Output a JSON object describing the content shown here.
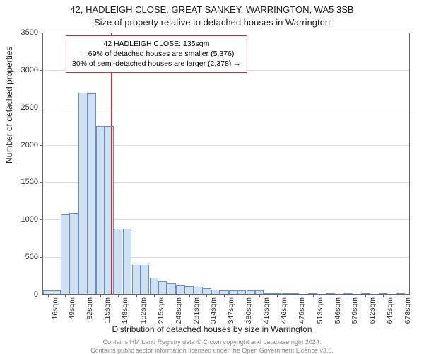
{
  "title_line1": "42, HADLEIGH CLOSE, GREAT SANKEY, WARRINGTON, WA5 3SB",
  "title_line2": "Size of property relative to detached houses in Warrington",
  "ylabel": "Number of detached properties",
  "xlabel": "Distribution of detached houses by size in Warrington",
  "footer_line1": "Contains HM Land Registry data © Crown copyright and database right 2024.",
  "footer_line2": "Contains public sector information licensed under the Open Government Licence v3.0.",
  "chart": {
    "type": "histogram",
    "ylim": [
      0,
      3500
    ],
    "ytick_step": 500,
    "background_color": "#ffffff",
    "grid_color": "#dddddd",
    "axis_color": "#666666",
    "bar_fill": "#cfe0f3",
    "bar_stroke": "#6a8fc7",
    "marker_color": "#c23333",
    "callout_border": "#c23333",
    "title_fontsize": 13,
    "label_fontsize": 12,
    "tick_fontsize": 11,
    "xtick_labels": [
      "16sqm",
      "49sqm",
      "82sqm",
      "115sqm",
      "148sqm",
      "182sqm",
      "215sqm",
      "248sqm",
      "281sqm",
      "314sqm",
      "347sqm",
      "380sqm",
      "413sqm",
      "446sqm",
      "479sqm",
      "513sqm",
      "546sqm",
      "579sqm",
      "612sqm",
      "645sqm",
      "678sqm"
    ],
    "xtick_values": [
      16,
      49,
      82,
      115,
      148,
      182,
      215,
      248,
      281,
      314,
      347,
      380,
      413,
      446,
      479,
      513,
      546,
      579,
      612,
      645,
      678
    ],
    "x_range": [
      6,
      695
    ],
    "bars": [
      {
        "x": 16,
        "count": 60
      },
      {
        "x": 32,
        "count": 60
      },
      {
        "x": 49,
        "count": 1080
      },
      {
        "x": 65,
        "count": 1090
      },
      {
        "x": 82,
        "count": 2700
      },
      {
        "x": 98,
        "count": 2690
      },
      {
        "x": 115,
        "count": 2250
      },
      {
        "x": 131,
        "count": 2250
      },
      {
        "x": 148,
        "count": 880
      },
      {
        "x": 165,
        "count": 880
      },
      {
        "x": 182,
        "count": 400
      },
      {
        "x": 198,
        "count": 400
      },
      {
        "x": 215,
        "count": 230
      },
      {
        "x": 231,
        "count": 180
      },
      {
        "x": 248,
        "count": 150
      },
      {
        "x": 265,
        "count": 120
      },
      {
        "x": 281,
        "count": 110
      },
      {
        "x": 298,
        "count": 100
      },
      {
        "x": 314,
        "count": 90
      },
      {
        "x": 331,
        "count": 70
      },
      {
        "x": 347,
        "count": 60
      },
      {
        "x": 364,
        "count": 60
      },
      {
        "x": 380,
        "count": 55
      },
      {
        "x": 397,
        "count": 55
      },
      {
        "x": 413,
        "count": 60
      },
      {
        "x": 430,
        "count": 15
      },
      {
        "x": 446,
        "count": 10
      },
      {
        "x": 463,
        "count": 8
      },
      {
        "x": 479,
        "count": 5
      },
      {
        "x": 513,
        "count": 3
      },
      {
        "x": 546,
        "count": 3
      },
      {
        "x": 579,
        "count": 2
      },
      {
        "x": 612,
        "count": 2
      },
      {
        "x": 645,
        "count": 2
      },
      {
        "x": 678,
        "count": 2
      }
    ],
    "bar_width_sqm": 16.5,
    "marker_x": 135,
    "callout": {
      "line1": "42 HADLEIGH CLOSE: 135sqm",
      "line2": "← 69% of detached houses are smaller (5,376)",
      "line3": "30% of semi-detached houses are larger (2,378) →"
    }
  }
}
